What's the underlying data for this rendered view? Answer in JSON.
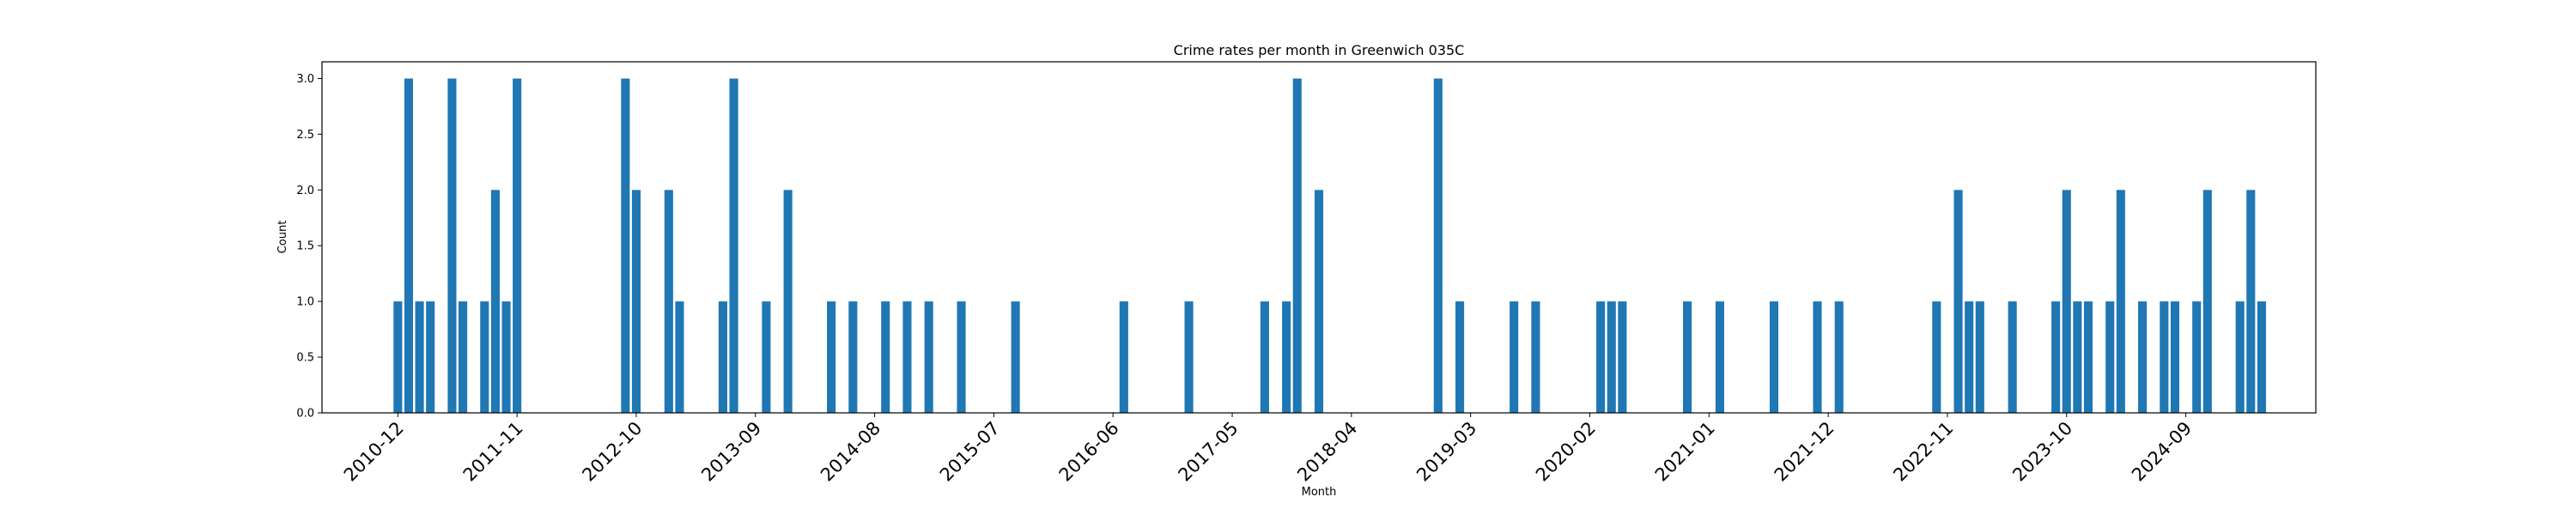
{
  "chart_data": {
    "type": "bar",
    "title": "Crime rates per month in Greenwich 035C",
    "xlabel": "Month",
    "ylabel": "Count",
    "ylim": [
      0,
      3.15
    ],
    "xlim": [
      "2010-05",
      "2025-09"
    ],
    "yticks": [
      0.0,
      0.5,
      1.0,
      1.5,
      2.0,
      2.5,
      3.0
    ],
    "ytick_labels": [
      "0.0",
      "0.5",
      "1.0",
      "1.5",
      "2.0",
      "2.5",
      "3.0"
    ],
    "xtick_labels": [
      "2010-12",
      "2011-11",
      "2012-10",
      "2013-09",
      "2014-08",
      "2015-07",
      "2016-06",
      "2017-05",
      "2018-04",
      "2019-03",
      "2020-02",
      "2021-01",
      "2021-12",
      "2022-11",
      "2023-10",
      "2024-09"
    ],
    "bar_color": "#1f77b4",
    "grid": false,
    "x": [
      "2010-12",
      "2011-01",
      "2011-02",
      "2011-03",
      "2011-05",
      "2011-06",
      "2011-08",
      "2011-09",
      "2011-10",
      "2011-11",
      "2012-09",
      "2012-10",
      "2013-01",
      "2013-02",
      "2013-06",
      "2013-07",
      "2013-10",
      "2013-12",
      "2014-04",
      "2014-06",
      "2014-09",
      "2014-11",
      "2015-01",
      "2015-04",
      "2015-09",
      "2016-07",
      "2017-01",
      "2017-08",
      "2017-10",
      "2017-11",
      "2018-01",
      "2018-12",
      "2019-02",
      "2019-07",
      "2019-09",
      "2020-03",
      "2020-04",
      "2020-05",
      "2020-11",
      "2021-02",
      "2021-07",
      "2021-11",
      "2022-01",
      "2022-10",
      "2022-12",
      "2023-01",
      "2023-02",
      "2023-05",
      "2023-09",
      "2023-10",
      "2023-11",
      "2023-12",
      "2024-02",
      "2024-03",
      "2024-05",
      "2024-07",
      "2024-08",
      "2024-10",
      "2024-11",
      "2025-02",
      "2025-03",
      "2025-04"
    ],
    "values": [
      1,
      3,
      1,
      1,
      3,
      1,
      1,
      2,
      1,
      3,
      3,
      2,
      2,
      1,
      1,
      3,
      1,
      2,
      1,
      1,
      1,
      1,
      1,
      1,
      1,
      1,
      1,
      1,
      1,
      3,
      2,
      3,
      1,
      1,
      1,
      1,
      1,
      1,
      1,
      1,
      1,
      1,
      1,
      1,
      2,
      1,
      1,
      1,
      1,
      2,
      1,
      1,
      1,
      2,
      1,
      1,
      1,
      1,
      2,
      1,
      2,
      1
    ]
  }
}
